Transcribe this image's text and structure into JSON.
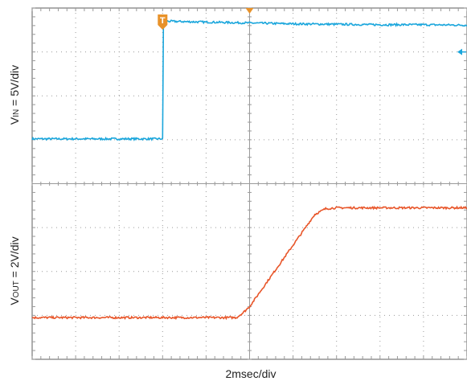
{
  "chart_data": {
    "type": "line",
    "xlabel": "2msec/div",
    "x_units": "div",
    "xlim": [
      0,
      10
    ],
    "grid": true,
    "panels": [
      {
        "ylabel": {
          "main": "V",
          "sub": "IN",
          "rest": " = 5V/div"
        },
        "ylim": [
          0,
          4
        ],
        "series": [
          {
            "color": "#1aa6dc",
            "x": [
              0,
              3.0,
              3.02,
              3.1,
              3.5,
              4.0,
              5.0,
              6.0,
              7.0,
              8.0,
              9.0,
              10.0
            ],
            "y": [
              1.02,
              1.02,
              3.7,
              3.7,
              3.69,
              3.68,
              3.66,
              3.64,
              3.63,
              3.62,
              3.62,
              3.61
            ]
          }
        ]
      },
      {
        "ylabel": {
          "main": "V",
          "sub": "OUT",
          "rest": " = 2V/div"
        },
        "ylim": [
          0,
          4
        ],
        "series": [
          {
            "color": "#e8562a",
            "x": [
              0,
              4.7,
              4.85,
              5.0,
              5.5,
              6.0,
              6.5,
              6.75,
              7.0,
              8.0,
              9.0,
              10.0
            ],
            "y": [
              0.95,
              0.95,
              1.06,
              1.2,
              1.9,
              2.6,
              3.3,
              3.43,
              3.45,
              3.45,
              3.45,
              3.45
            ]
          }
        ]
      }
    ],
    "markers": [
      {
        "name": "trigger-position",
        "x": 5.0
      },
      {
        "name": "trigger-point",
        "x": 3.0,
        "label": "T"
      },
      {
        "name": "trigger-level",
        "panel": 0,
        "y": 3.0
      }
    ]
  },
  "colors": {
    "grid_border": "#777777",
    "grid_dots": "#9a9a9a",
    "ch1": "#1aa6dc",
    "ch2": "#e8562a",
    "trigger": "#e8922a"
  }
}
